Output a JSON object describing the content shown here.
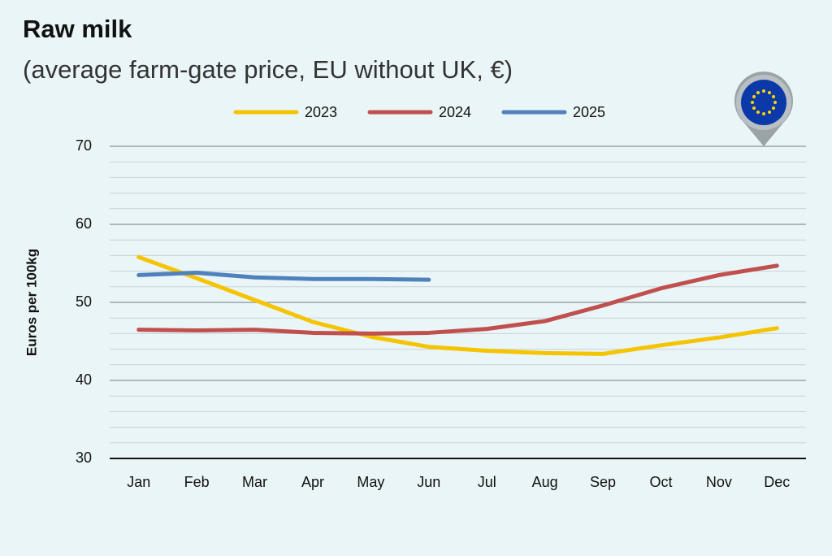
{
  "chart_data": {
    "type": "line",
    "title": "Raw milk",
    "subtitle": "(average farm-gate price, EU without UK, €)",
    "y_label": "Euros per 100kg",
    "categories": [
      "Jan",
      "Feb",
      "Mar",
      "Apr",
      "May",
      "Jun",
      "Jul",
      "Aug",
      "Sep",
      "Oct",
      "Nov",
      "Dec"
    ],
    "series": [
      {
        "name": "2023",
        "color": "#f5c400",
        "values": [
          55.8,
          53.1,
          50.3,
          47.5,
          45.6,
          44.3,
          43.8,
          43.5,
          43.4,
          44.5,
          45.5,
          46.7
        ]
      },
      {
        "name": "2024",
        "color": "#c0504d",
        "values": [
          46.5,
          46.4,
          46.5,
          46.1,
          46.0,
          46.1,
          46.6,
          47.6,
          49.6,
          51.8,
          53.5,
          54.7
        ]
      },
      {
        "name": "2025",
        "color": "#4f81bd",
        "values": [
          53.5,
          53.8,
          53.2,
          53.0,
          53.0,
          52.9,
          null,
          null,
          null,
          null,
          null,
          null
        ]
      }
    ],
    "ylim": [
      30,
      70
    ],
    "yticks": [
      30,
      40,
      50,
      60,
      70
    ],
    "minor_yticks": [
      32,
      34,
      36,
      38,
      42,
      44,
      46,
      48,
      52,
      54,
      56,
      58,
      62,
      64,
      66,
      68
    ],
    "grid": true,
    "legend": "top"
  }
}
